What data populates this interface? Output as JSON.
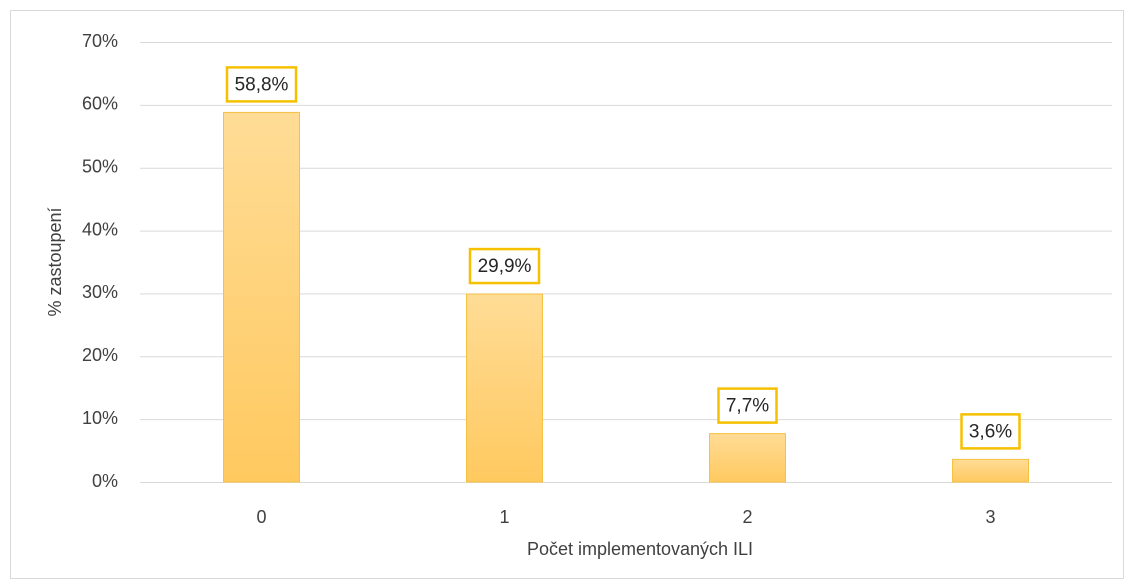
{
  "chart_data": {
    "type": "bar",
    "x_label": "Počet implementovaných ILI",
    "y_label": "% zastoupení",
    "categories": [
      "0",
      "1",
      "2",
      "3"
    ],
    "values": [
      58.8,
      29.9,
      7.7,
      3.6
    ],
    "value_labels": [
      "58,8%",
      "29,9%",
      "7,7%",
      "3,6%"
    ],
    "color": "#ffd68a",
    "ylim": [
      0,
      70
    ],
    "yticks": [
      {
        "value": 0,
        "label": "0%"
      },
      {
        "value": 10,
        "label": "10%"
      },
      {
        "value": 20,
        "label": "20%"
      },
      {
        "value": 30,
        "label": "30%"
      },
      {
        "value": 40,
        "label": "40%"
      },
      {
        "value": 50,
        "label": "50%"
      },
      {
        "value": 60,
        "label": "60%"
      },
      {
        "value": 70,
        "label": "70%"
      }
    ],
    "grid": true
  }
}
